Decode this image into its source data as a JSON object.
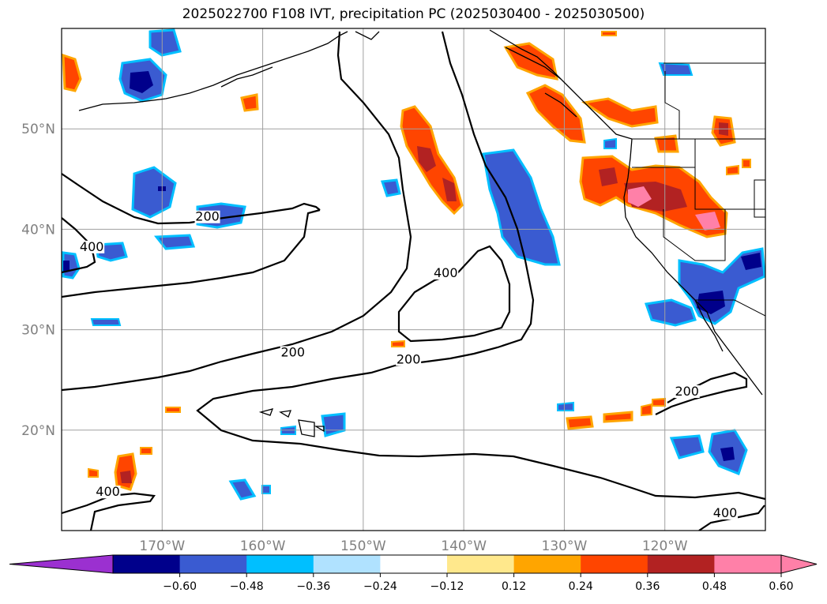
{
  "title": "2025022700 F108 IVT, precipitation PC (2025030400 - 2025030500)",
  "map": {
    "projection": "PlateCarree",
    "lon_range": [
      -180,
      -110
    ],
    "lat_range": [
      10,
      60
    ],
    "gridlines": true,
    "lat_ticks": [
      {
        "lat": 50,
        "label": "50°N"
      },
      {
        "lat": 40,
        "label": "40°N"
      },
      {
        "lat": 30,
        "label": "30°N"
      },
      {
        "lat": 20,
        "label": "20°N"
      }
    ],
    "lon_ticks": [
      {
        "lon": -170,
        "label": "170°W"
      },
      {
        "lon": -160,
        "label": "160°W"
      },
      {
        "lon": -150,
        "label": "150°W"
      },
      {
        "lon": -140,
        "label": "140°W"
      },
      {
        "lon": -130,
        "label": "130°W"
      },
      {
        "lon": -120,
        "label": "120°W"
      }
    ],
    "ivt_contour_labels": [
      {
        "text": "200",
        "lon": -165.5,
        "lat": 41.0
      },
      {
        "text": "400",
        "lon": -177.0,
        "lat": 38.0
      },
      {
        "text": "200",
        "lon": -157.0,
        "lat": 27.5
      },
      {
        "text": "200",
        "lon": -145.5,
        "lat": 26.8
      },
      {
        "text": "400",
        "lon": -141.8,
        "lat": 35.4
      },
      {
        "text": "200",
        "lon": -117.8,
        "lat": 23.6
      },
      {
        "text": "400",
        "lon": -175.4,
        "lat": 13.6
      },
      {
        "text": "400",
        "lon": -114.0,
        "lat": 11.5
      }
    ]
  },
  "colorbar": {
    "ticks": [
      "−0.60",
      "−0.48",
      "−0.36",
      "−0.24",
      "−0.12",
      "0.12",
      "0.24",
      "0.36",
      "0.48",
      "0.60"
    ],
    "under_color": "#9b30d0",
    "colors": [
      "#00008b",
      "#3a5bd1",
      "#00bfff",
      "#b0e2ff",
      "#ffffff",
      "#ffe88c",
      "#ffa500",
      "#ff4500",
      "#b22222",
      "#ff80a8"
    ],
    "over_color": "#ff80a8"
  },
  "colors": {
    "neg_dark": "#00008b",
    "neg_mid": "#3a5bd1",
    "neg_light": "#00bfff",
    "pos_light": "#ffe88c",
    "pos_mid": "#ffa500",
    "pos_strong": "#ff4500",
    "pos_dark": "#b22222",
    "pos_max": "#ff80a8"
  }
}
